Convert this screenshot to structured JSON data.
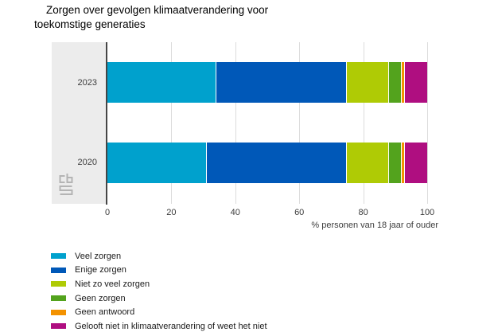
{
  "title": {
    "line1": "Zorgen over gevolgen klimaatverandering voor",
    "line2": "toekomstige generaties"
  },
  "chart_data": {
    "type": "bar",
    "orientation": "horizontal",
    "stacked": true,
    "title": "Zorgen over gevolgen klimaatverandering voor toekomstige generaties",
    "categories": [
      "2023",
      "2020"
    ],
    "series": [
      {
        "name": "Veel zorgen",
        "color": "#00a1cd",
        "values": [
          34,
          31
        ]
      },
      {
        "name": "Enige zorgen",
        "color": "#0058b8",
        "values": [
          41,
          44
        ]
      },
      {
        "name": "Niet zo veel zorgen",
        "color": "#afcb05",
        "values": [
          13,
          13
        ]
      },
      {
        "name": "Geen zorgen",
        "color": "#53a31d",
        "values": [
          4,
          4
        ]
      },
      {
        "name": "Geen antwoord",
        "color": "#f39200",
        "values": [
          1,
          1
        ]
      },
      {
        "name": "Gelooft niet in klimaatverandering of weet het niet",
        "color": "#af0e80",
        "values": [
          7,
          7
        ]
      }
    ],
    "xlabel": "% personen van 18 jaar of ouder",
    "xlim": [
      0,
      100
    ],
    "xticks": [
      0,
      20,
      40,
      60,
      80,
      100
    ],
    "grid": true,
    "legend_position": "bottom-left",
    "panel_color": "#ececec",
    "gridline_color": "#dcdcdc",
    "axis_color": "#454545"
  },
  "branding": {
    "logo": "cbs-logo"
  }
}
